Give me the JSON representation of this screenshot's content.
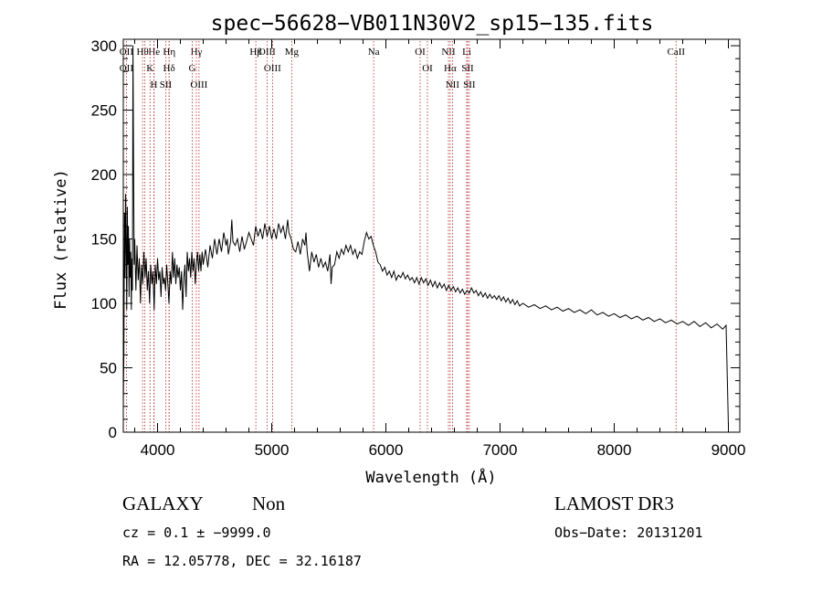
{
  "chart_data": {
    "type": "line",
    "title": "spec−56628−VB011N30V2_sp15−135.fits",
    "xlabel": "Wavelength (Å)",
    "ylabel": "Flux (relative)",
    "xlim": [
      3700,
      9100
    ],
    "ylim": [
      0,
      305
    ],
    "x_ticks": [
      4000,
      5000,
      6000,
      7000,
      8000,
      9000
    ],
    "y_ticks": [
      0,
      50,
      100,
      150,
      200,
      250,
      300
    ],
    "series": [
      {
        "points": [
          [
            3700,
            20
          ],
          [
            3705,
            60
          ],
          [
            3710,
            170
          ],
          [
            3715,
            120
          ],
          [
            3720,
            185
          ],
          [
            3725,
            150
          ],
          [
            3730,
            95
          ],
          [
            3735,
            175
          ],
          [
            3740,
            130
          ],
          [
            3745,
            160
          ],
          [
            3750,
            105
          ],
          [
            3755,
            150
          ],
          [
            3760,
            120
          ],
          [
            3765,
            140
          ],
          [
            3770,
            95
          ],
          [
            3775,
            135
          ],
          [
            3780,
            110
          ],
          [
            3785,
            300
          ],
          [
            3790,
            200
          ],
          [
            3795,
            130
          ],
          [
            3800,
            150
          ],
          [
            3810,
            110
          ],
          [
            3820,
            145
          ],
          [
            3830,
            118
          ],
          [
            3840,
            135
          ],
          [
            3850,
            100
          ],
          [
            3860,
            130
          ],
          [
            3870,
            115
          ],
          [
            3880,
            140
          ],
          [
            3890,
            120
          ],
          [
            3900,
            135
          ],
          [
            3910,
            110
          ],
          [
            3920,
            125
          ],
          [
            3930,
            100
          ],
          [
            3940,
            130
          ],
          [
            3950,
            115
          ],
          [
            3960,
            125
          ],
          [
            3970,
            95
          ],
          [
            3980,
            130
          ],
          [
            3990,
            115
          ],
          [
            4000,
            135
          ],
          [
            4010,
            118
          ],
          [
            4020,
            125
          ],
          [
            4030,
            105
          ],
          [
            4040,
            128
          ],
          [
            4050,
            115
          ],
          [
            4060,
            120
          ],
          [
            4070,
            110
          ],
          [
            4080,
            130
          ],
          [
            4090,
            115
          ],
          [
            4100,
            100
          ],
          [
            4110,
            125
          ],
          [
            4120,
            115
          ],
          [
            4130,
            140
          ],
          [
            4140,
            120
          ],
          [
            4150,
            135
          ],
          [
            4160,
            115
          ],
          [
            4170,
            130
          ],
          [
            4180,
            120
          ],
          [
            4190,
            128
          ],
          [
            4200,
            110
          ],
          [
            4210,
            125
          ],
          [
            4220,
            95
          ],
          [
            4230,
            120
          ],
          [
            4240,
            130
          ],
          [
            4250,
            105
          ],
          [
            4260,
            140
          ],
          [
            4270,
            125
          ],
          [
            4280,
            135
          ],
          [
            4290,
            120
          ],
          [
            4300,
            140
          ],
          [
            4310,
            125
          ],
          [
            4320,
            135
          ],
          [
            4330,
            115
          ],
          [
            4340,
            130
          ],
          [
            4350,
            140
          ],
          [
            4360,
            125
          ],
          [
            4370,
            138
          ],
          [
            4380,
            125
          ],
          [
            4390,
            140
          ],
          [
            4400,
            130
          ],
          [
            4420,
            142
          ],
          [
            4440,
            128
          ],
          [
            4460,
            145
          ],
          [
            4480,
            135
          ],
          [
            4500,
            150
          ],
          [
            4520,
            138
          ],
          [
            4540,
            150
          ],
          [
            4560,
            140
          ],
          [
            4580,
            155
          ],
          [
            4600,
            145
          ],
          [
            4610,
            150
          ],
          [
            4620,
            138
          ],
          [
            4640,
            148
          ],
          [
            4650,
            165
          ],
          [
            4660,
            148
          ],
          [
            4680,
            145
          ],
          [
            4700,
            150
          ],
          [
            4720,
            140
          ],
          [
            4740,
            152
          ],
          [
            4760,
            142
          ],
          [
            4780,
            148
          ],
          [
            4800,
            155
          ],
          [
            4820,
            150
          ],
          [
            4840,
            145
          ],
          [
            4860,
            160
          ],
          [
            4880,
            152
          ],
          [
            4900,
            158
          ],
          [
            4920,
            150
          ],
          [
            4940,
            162
          ],
          [
            4960,
            152
          ],
          [
            4980,
            160
          ],
          [
            5000,
            150
          ],
          [
            5020,
            158
          ],
          [
            5040,
            150
          ],
          [
            5060,
            162
          ],
          [
            5080,
            155
          ],
          [
            5100,
            160
          ],
          [
            5120,
            150
          ],
          [
            5140,
            165
          ],
          [
            5150,
            155
          ],
          [
            5170,
            150
          ],
          [
            5190,
            142
          ],
          [
            5210,
            140
          ],
          [
            5230,
            148
          ],
          [
            5250,
            138
          ],
          [
            5270,
            150
          ],
          [
            5290,
            145
          ],
          [
            5300,
            155
          ],
          [
            5310,
            140
          ],
          [
            5330,
            125
          ],
          [
            5350,
            140
          ],
          [
            5370,
            132
          ],
          [
            5390,
            138
          ],
          [
            5410,
            128
          ],
          [
            5430,
            135
          ],
          [
            5450,
            128
          ],
          [
            5470,
            132
          ],
          [
            5490,
            125
          ],
          [
            5510,
            138
          ],
          [
            5520,
            115
          ],
          [
            5530,
            128
          ],
          [
            5550,
            130
          ],
          [
            5570,
            140
          ],
          [
            5590,
            135
          ],
          [
            5610,
            142
          ],
          [
            5630,
            138
          ],
          [
            5650,
            145
          ],
          [
            5670,
            140
          ],
          [
            5690,
            145
          ],
          [
            5710,
            138
          ],
          [
            5730,
            142
          ],
          [
            5750,
            135
          ],
          [
            5770,
            140
          ],
          [
            5790,
            138
          ],
          [
            5810,
            148
          ],
          [
            5830,
            155
          ],
          [
            5850,
            150
          ],
          [
            5870,
            152
          ],
          [
            5890,
            145
          ],
          [
            5910,
            140
          ],
          [
            5930,
            132
          ],
          [
            5950,
            130
          ],
          [
            5970,
            125
          ],
          [
            5990,
            128
          ],
          [
            6010,
            122
          ],
          [
            6030,
            125
          ],
          [
            6050,
            120
          ],
          [
            6070,
            125
          ],
          [
            6090,
            118
          ],
          [
            6110,
            122
          ],
          [
            6130,
            120
          ],
          [
            6150,
            124
          ],
          [
            6170,
            119
          ],
          [
            6190,
            122
          ],
          [
            6210,
            118
          ],
          [
            6230,
            120
          ],
          [
            6250,
            116
          ],
          [
            6270,
            120
          ],
          [
            6290,
            115
          ],
          [
            6310,
            120
          ],
          [
            6330,
            116
          ],
          [
            6350,
            119
          ],
          [
            6370,
            114
          ],
          [
            6390,
            118
          ],
          [
            6410,
            113
          ],
          [
            6430,
            117
          ],
          [
            6450,
            112
          ],
          [
            6470,
            116
          ],
          [
            6490,
            112
          ],
          [
            6510,
            115
          ],
          [
            6530,
            110
          ],
          [
            6550,
            114
          ],
          [
            6570,
            110
          ],
          [
            6590,
            113
          ],
          [
            6610,
            109
          ],
          [
            6630,
            112
          ],
          [
            6650,
            108
          ],
          [
            6670,
            111
          ],
          [
            6690,
            107
          ],
          [
            6710,
            110
          ],
          [
            6730,
            108
          ],
          [
            6750,
            112
          ],
          [
            6770,
            108
          ],
          [
            6790,
            110
          ],
          [
            6810,
            106
          ],
          [
            6830,
            109
          ],
          [
            6850,
            105
          ],
          [
            6870,
            108
          ],
          [
            6890,
            104
          ],
          [
            6910,
            107
          ],
          [
            6930,
            104
          ],
          [
            6950,
            106
          ],
          [
            6970,
            103
          ],
          [
            6990,
            106
          ],
          [
            7010,
            102
          ],
          [
            7030,
            105
          ],
          [
            7050,
            101
          ],
          [
            7070,
            104
          ],
          [
            7090,
            100
          ],
          [
            7110,
            103
          ],
          [
            7130,
            99
          ],
          [
            7150,
            102
          ],
          [
            7170,
            98
          ],
          [
            7200,
            100
          ],
          [
            7250,
            97
          ],
          [
            7300,
            99
          ],
          [
            7350,
            96
          ],
          [
            7400,
            98
          ],
          [
            7450,
            95
          ],
          [
            7500,
            97
          ],
          [
            7550,
            94
          ],
          [
            7600,
            96
          ],
          [
            7650,
            93
          ],
          [
            7700,
            95
          ],
          [
            7750,
            92
          ],
          [
            7800,
            95
          ],
          [
            7850,
            91
          ],
          [
            7900,
            93
          ],
          [
            7950,
            90
          ],
          [
            8000,
            92
          ],
          [
            8050,
            89
          ],
          [
            8100,
            91
          ],
          [
            8150,
            88
          ],
          [
            8200,
            90
          ],
          [
            8250,
            87
          ],
          [
            8300,
            89
          ],
          [
            8350,
            86
          ],
          [
            8400,
            88
          ],
          [
            8450,
            85
          ],
          [
            8500,
            87
          ],
          [
            8550,
            84
          ],
          [
            8600,
            86
          ],
          [
            8650,
            83
          ],
          [
            8700,
            86
          ],
          [
            8750,
            82
          ],
          [
            8800,
            85
          ],
          [
            8850,
            81
          ],
          [
            8900,
            84
          ],
          [
            8950,
            80
          ],
          [
            8980,
            83
          ],
          [
            9000,
            5
          ]
        ]
      }
    ],
    "line_markers": [
      {
        "wl": 3727,
        "labels": [
          "OII",
          "OII"
        ]
      },
      {
        "wl": 3869,
        "labels": [
          "Hθ"
        ]
      },
      {
        "wl": 3889,
        "labels": []
      },
      {
        "wl": 3970,
        "labels": [
          "He"
        ]
      },
      {
        "wl": 4102,
        "labels": [
          "Hη"
        ]
      },
      {
        "wl": 3934,
        "labels": [
          "K"
        ]
      },
      {
        "wl": 3968,
        "labels": [
          "H"
        ]
      },
      {
        "wl": 4101,
        "labels": [
          "Hδ"
        ]
      },
      {
        "wl": 4072,
        "labels": [
          "SII"
        ]
      },
      {
        "wl": 4340,
        "labels": [
          "Hγ"
        ]
      },
      {
        "wl": 4304,
        "labels": [
          "G"
        ]
      },
      {
        "wl": 4363,
        "labels": [
          "OIII"
        ]
      },
      {
        "wl": 4861,
        "labels": [
          "Hβ"
        ]
      },
      {
        "wl": 4959,
        "labels": [
          "OIII"
        ]
      },
      {
        "wl": 5007,
        "labels": [
          "OIII"
        ]
      },
      {
        "wl": 5175,
        "labels": [
          "Mg"
        ]
      },
      {
        "wl": 5893,
        "labels": [
          "Na"
        ]
      },
      {
        "wl": 6300,
        "labels": [
          "OI"
        ]
      },
      {
        "wl": 6364,
        "labels": [
          "OI"
        ]
      },
      {
        "wl": 6548,
        "labels": [
          "NII"
        ]
      },
      {
        "wl": 6563,
        "labels": [
          "Hα"
        ]
      },
      {
        "wl": 6583,
        "labels": [
          "NII"
        ]
      },
      {
        "wl": 6708,
        "labels": [
          "Li"
        ]
      },
      {
        "wl": 6716,
        "labels": [
          "SII"
        ]
      },
      {
        "wl": 6731,
        "labels": [
          "SII"
        ]
      },
      {
        "wl": 8542,
        "labels": [
          "CaII"
        ]
      }
    ]
  },
  "info": {
    "class": "GALAXY",
    "subclass": "Non",
    "survey": "LAMOST DR3",
    "cz": "cz = 0.1 ± −9999.0",
    "obs_date": "Obs−Date: 20131201",
    "radec": "RA =  12.05778, DEC =  32.16187"
  }
}
